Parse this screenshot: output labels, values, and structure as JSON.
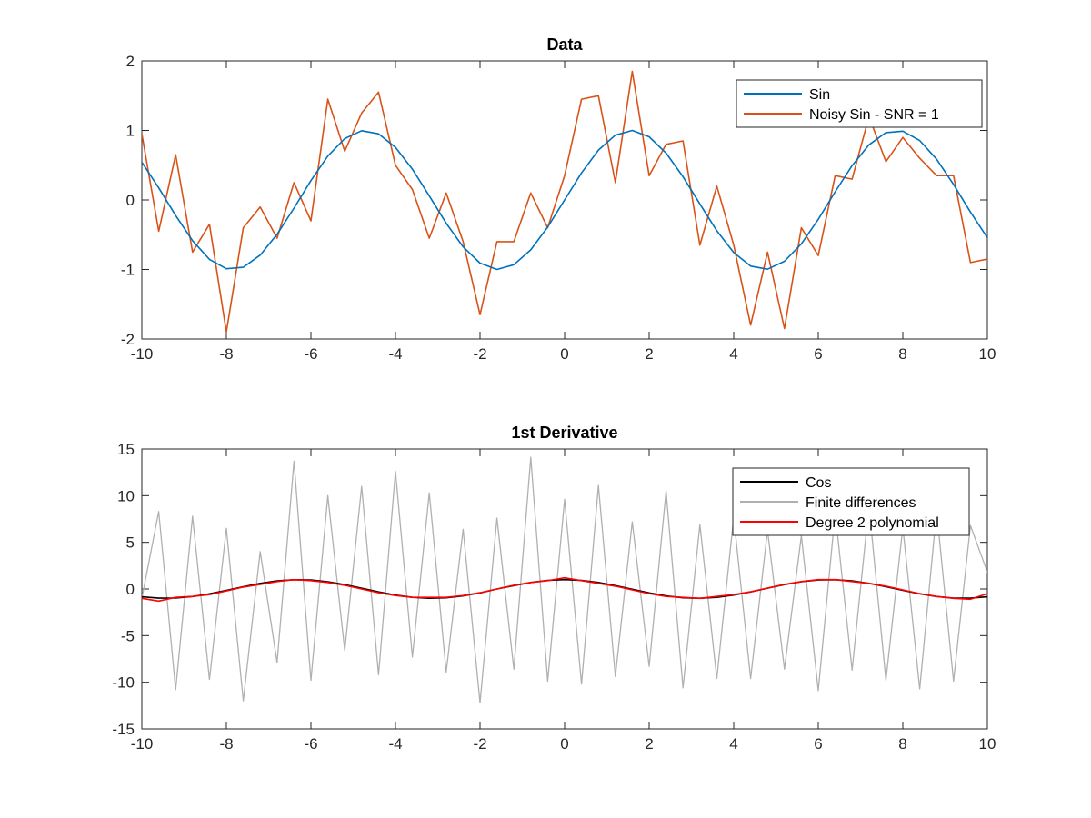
{
  "chart_data": [
    {
      "type": "line",
      "title": "Data",
      "xlabel": "",
      "ylabel": "",
      "xlim": [
        -10,
        10
      ],
      "ylim": [
        -2,
        2
      ],
      "xticks": [
        -10,
        -8,
        -6,
        -4,
        -2,
        0,
        2,
        4,
        6,
        8,
        10
      ],
      "yticks": [
        -2,
        -1,
        0,
        1,
        2
      ],
      "xtick_labels": [
        "-10",
        "-8",
        "-6",
        "-4",
        "-2",
        "0",
        "2",
        "4",
        "6",
        "8",
        "10"
      ],
      "ytick_labels": [
        "-2",
        "-1",
        "0",
        "1",
        "2"
      ],
      "grid": false,
      "legend_position": "top-right",
      "x": [
        -10.0,
        -9.6,
        -9.2,
        -8.8,
        -8.4,
        -8.0,
        -7.6,
        -7.2,
        -6.8,
        -6.4,
        -6.0,
        -5.6,
        -5.2,
        -4.8,
        -4.4,
        -4.0,
        -3.6,
        -3.2,
        -2.8,
        -2.4,
        -2.0,
        -1.6,
        -1.2,
        -0.8,
        -0.4,
        0.0,
        0.4,
        0.8,
        1.2,
        1.6,
        2.0,
        2.4,
        2.8,
        3.2,
        3.6,
        4.0,
        4.4,
        4.8,
        5.2,
        5.6,
        6.0,
        6.4,
        6.8,
        7.2,
        7.6,
        8.0,
        8.4,
        8.8,
        9.2,
        9.6,
        10.0
      ],
      "series": [
        {
          "name": "Sin",
          "color": "#0072bd",
          "values": [
            0.544,
            0.174,
            -0.223,
            -0.585,
            -0.855,
            -0.989,
            -0.968,
            -0.794,
            -0.494,
            -0.117,
            0.279,
            0.631,
            0.883,
            0.996,
            0.952,
            0.757,
            0.443,
            0.058,
            -0.335,
            -0.675,
            -0.909,
            -1.0,
            -0.932,
            -0.717,
            -0.389,
            0.0,
            0.389,
            0.717,
            0.932,
            1.0,
            0.909,
            0.675,
            0.335,
            -0.058,
            -0.443,
            -0.757,
            -0.952,
            -0.996,
            -0.883,
            -0.631,
            -0.279,
            0.117,
            0.494,
            0.794,
            0.968,
            0.989,
            0.855,
            0.585,
            0.223,
            -0.174,
            -0.544
          ]
        },
        {
          "name": "Noisy Sin - SNR = 1",
          "color": "#d95319",
          "values": [
            0.95,
            -0.45,
            0.65,
            -0.75,
            -0.35,
            -1.9,
            -0.4,
            -0.1,
            -0.55,
            0.25,
            -0.3,
            1.45,
            0.7,
            1.25,
            1.55,
            0.5,
            0.15,
            -0.55,
            0.1,
            -0.6,
            -1.65,
            -0.6,
            -0.6,
            0.1,
            -0.4,
            0.35,
            1.45,
            1.5,
            0.25,
            1.85,
            0.35,
            0.8,
            0.85,
            -0.65,
            0.2,
            -0.65,
            -1.8,
            -0.75,
            -1.85,
            -0.4,
            -0.8,
            0.35,
            0.3,
            1.2,
            0.55,
            0.9,
            0.6,
            0.35,
            0.35,
            -0.9,
            -0.85
          ]
        }
      ]
    },
    {
      "type": "line",
      "title": "1st Derivative",
      "xlabel": "",
      "ylabel": "",
      "xlim": [
        -10,
        10
      ],
      "ylim": [
        -15,
        15
      ],
      "xticks": [
        -10,
        -8,
        -6,
        -4,
        -2,
        0,
        2,
        4,
        6,
        8,
        10
      ],
      "yticks": [
        -15,
        -10,
        -5,
        0,
        5,
        10,
        15
      ],
      "xtick_labels": [
        "-10",
        "-8",
        "-6",
        "-4",
        "-2",
        "0",
        "2",
        "4",
        "6",
        "8",
        "10"
      ],
      "ytick_labels": [
        "-15",
        "-10",
        "-5",
        "0",
        "5",
        "10",
        "15"
      ],
      "grid": false,
      "legend_position": "top-right",
      "x": [
        -10.0,
        -9.6,
        -9.2,
        -8.8,
        -8.4,
        -8.0,
        -7.6,
        -7.2,
        -6.8,
        -6.4,
        -6.0,
        -5.6,
        -5.2,
        -4.8,
        -4.4,
        -4.0,
        -3.6,
        -3.2,
        -2.8,
        -2.4,
        -2.0,
        -1.6,
        -1.2,
        -0.8,
        -0.4,
        0.0,
        0.4,
        0.8,
        1.2,
        1.6,
        2.0,
        2.4,
        2.8,
        3.2,
        3.6,
        4.0,
        4.4,
        4.8,
        5.2,
        5.6,
        6.0,
        6.4,
        6.8,
        7.2,
        7.6,
        8.0,
        8.4,
        8.8,
        9.2,
        9.6,
        10.0
      ],
      "series": [
        {
          "name": "Cos",
          "color": "#000000",
          "values": [
            -0.839,
            -0.985,
            -0.975,
            -0.811,
            -0.519,
            -0.146,
            0.248,
            0.608,
            0.869,
            0.993,
            0.96,
            0.776,
            0.469,
            0.088,
            -0.307,
            -0.654,
            -0.897,
            -0.998,
            -0.942,
            -0.737,
            -0.416,
            0.0,
            0.362,
            0.697,
            0.921,
            1.0,
            0.921,
            0.697,
            0.362,
            -0.029,
            -0.416,
            -0.737,
            -0.942,
            -0.998,
            -0.897,
            -0.654,
            -0.307,
            0.088,
            0.469,
            0.776,
            0.96,
            0.993,
            0.869,
            0.608,
            0.248,
            -0.146,
            -0.519,
            -0.811,
            -0.975,
            -0.985,
            -0.839
          ]
        },
        {
          "name": "Finite differences",
          "color": "#b0b0b0",
          "values": [
            -1.0,
            8.3,
            -10.8,
            7.8,
            -9.7,
            6.5,
            -12.0,
            4.0,
            -7.9,
            13.7,
            -9.8,
            10.0,
            -6.6,
            11.0,
            -9.2,
            12.6,
            -7.3,
            10.3,
            -8.9,
            6.4,
            -12.2,
            7.6,
            -8.6,
            14.1,
            -9.9,
            9.6,
            -10.2,
            11.1,
            -9.4,
            7.2,
            -8.3,
            10.5,
            -10.6,
            6.9,
            -9.6,
            7.7,
            -9.6,
            6.3,
            -8.6,
            5.7,
            -10.9,
            8.2,
            -8.7,
            8.9,
            -9.8,
            6.6,
            -10.7,
            8.4,
            -9.9,
            6.8,
            1.8
          ]
        },
        {
          "name": "Degree 2 polynomial",
          "color": "#ff0000",
          "values": [
            -1.0,
            -1.3,
            -0.9,
            -0.8,
            -0.6,
            -0.2,
            0.2,
            0.5,
            0.8,
            1.0,
            0.9,
            0.7,
            0.4,
            0.0,
            -0.4,
            -0.7,
            -0.9,
            -0.9,
            -0.9,
            -0.7,
            -0.4,
            0.0,
            0.4,
            0.7,
            0.9,
            1.2,
            0.9,
            0.6,
            0.3,
            -0.1,
            -0.5,
            -0.8,
            -0.9,
            -1.0,
            -0.8,
            -0.6,
            -0.3,
            0.1,
            0.5,
            0.8,
            1.0,
            1.0,
            0.8,
            0.6,
            0.3,
            -0.1,
            -0.5,
            -0.8,
            -1.0,
            -1.1,
            -0.5
          ]
        }
      ]
    }
  ]
}
